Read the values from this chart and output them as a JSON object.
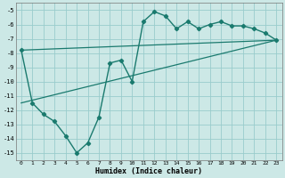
{
  "xlabel": "Humidex (Indice chaleur)",
  "background_color": "#cce8e6",
  "grid_color": "#99cccc",
  "line_color": "#1a7a6e",
  "xlim": [
    -0.5,
    23.5
  ],
  "ylim": [
    -15.5,
    -4.5
  ],
  "xticks": [
    0,
    1,
    2,
    3,
    4,
    5,
    6,
    7,
    8,
    9,
    10,
    11,
    12,
    13,
    14,
    15,
    16,
    17,
    18,
    19,
    20,
    21,
    22,
    23
  ],
  "yticks": [
    -5,
    -6,
    -7,
    -8,
    -9,
    -10,
    -11,
    -12,
    -13,
    -14,
    -15
  ],
  "main_x": [
    0,
    1,
    2,
    3,
    4,
    5,
    6,
    7,
    8,
    9,
    10,
    11,
    12,
    13,
    14,
    15,
    16,
    17,
    18,
    19,
    20,
    21,
    22,
    23
  ],
  "main_y": [
    -7.8,
    -11.5,
    -12.3,
    -12.8,
    -13.8,
    -15.0,
    -14.3,
    -12.5,
    -8.7,
    -8.5,
    -10.0,
    -5.8,
    -5.1,
    -5.4,
    -6.3,
    -5.8,
    -6.3,
    -6.0,
    -5.8,
    -6.1,
    -6.1,
    -6.3,
    -6.6,
    -7.1
  ],
  "line1_x": [
    0,
    23
  ],
  "line1_y": [
    -7.8,
    -7.1
  ],
  "line2_x": [
    0,
    23
  ],
  "line2_y": [
    -11.5,
    -7.1
  ]
}
